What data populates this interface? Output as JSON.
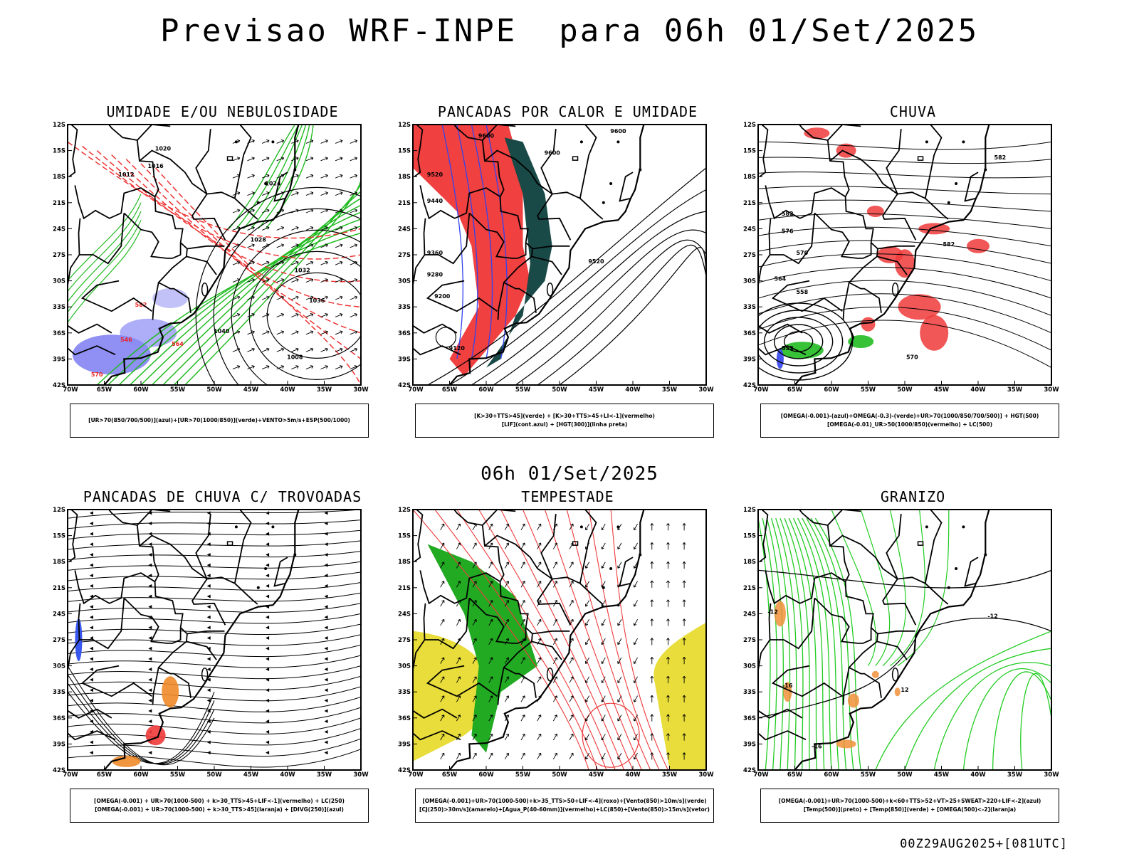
{
  "main_title": "Previsao WRF-INPE  para 06h 01/Set/2025",
  "mid_title": "06h 01/Set/2025",
  "footer": "00Z29AUG2025+[081UTC]",
  "axes": {
    "lat_labels": [
      "12S",
      "15S",
      "18S",
      "21S",
      "24S",
      "27S",
      "30S",
      "33S",
      "36S",
      "39S",
      "42S"
    ],
    "lon_labels": [
      "70W",
      "65W",
      "60W",
      "55W",
      "50W",
      "45W",
      "40W",
      "35W",
      "30W"
    ]
  },
  "panels": [
    {
      "title": "UMIDADE E/OU NEBULOSIDADE",
      "legend": [
        "[UR>70(850/700/500)](azul)+[UR>70(1000/850)](verde)+VENTO>5m/s+ESP(500/1000)"
      ],
      "contour_labels": [
        "1012",
        "1020",
        "1016",
        "1024",
        "1028",
        "1032",
        "1036",
        "1040",
        "1008",
        "570",
        "582",
        "546",
        "564"
      ]
    },
    {
      "title": "PANCADAS POR CALOR E UMIDADE",
      "legend": [
        "[K>30+TTS>45](verde) + [K>30+TTS>45+LI<-1](vermelho)",
        "[LIF](cont.azul) + [HGT(300)](linha preta)"
      ],
      "contour_labels": [
        "9600",
        "9520",
        "9440",
        "9360",
        "9280",
        "9200",
        "9120"
      ]
    },
    {
      "title": "CHUVA",
      "legend": [
        "[OMEGA(-0.001)-(azul)+OMEGA(-0.3)-(verde)+UR>70(1000/850/700/500)] + HGT(500)",
        "[OMEGA(-0.01)_UR>50(1000/850)(vermelho) + LC(500)"
      ],
      "contour_labels": [
        "582",
        "576",
        "570",
        "564",
        "558",
        "552"
      ]
    },
    {
      "title": "PANCADAS DE CHUVA C/ TROVOADAS",
      "legend": [
        "[OMEGA(-0.001) + UR>70(1000-500) + k>30_TTS>45+LIF<-1](vermelho) + LC(250)",
        "[OMEGA(-0.001) + UR>70(1000-500) + k>30_TTS>45](laranja) + [DIVG(250)](azul)"
      ],
      "contour_labels": []
    },
    {
      "title": "TEMPESTADE",
      "legend": [
        "[OMEGA(-0.001)+UR>70(1000-500)+k>35_TTS>50+LIF<-4](roxo)+[Vento(850)>10m/s](verde)",
        "[CJ(250)>30m/s](amarelo)+[Agua_P(40-60mm)](vermelho)+LC(850)+[Vento(850)>15m/s](vetor)"
      ],
      "contour_labels": []
    },
    {
      "title": "GRANIZO",
      "legend": [
        "[OMEGA(-0.001)+UR>70(1000-500)+k<60+TTS>52+VT>25+SWEAT>220+LIF<-2](azul)",
        "[Temp(500)](preto) + [Temp(850)](verde) + [OMEGA(500)<-2](laranja)"
      ],
      "contour_labels": [
        "-12",
        "-12",
        "-16",
        "12",
        "-16"
      ]
    }
  ]
}
